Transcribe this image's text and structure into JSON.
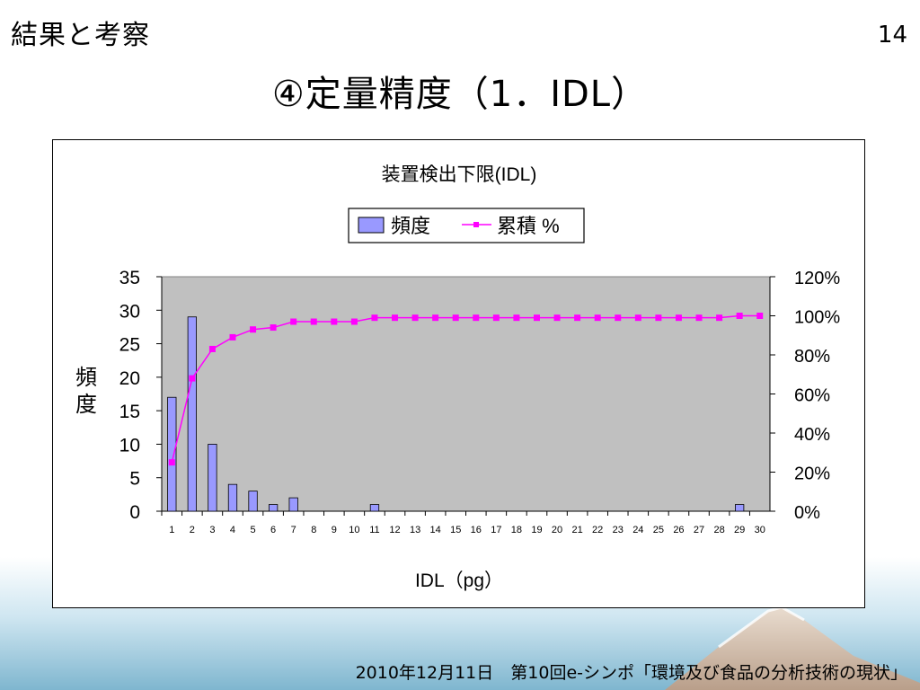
{
  "slide": {
    "section_title": "結果と考察",
    "page_number": "14",
    "title": "④定量精度（1．IDL）",
    "footer": "2010年12月11日　第10回e-シンポ「環境及び食品の分析技術の現状」"
  },
  "chart_data": {
    "type": "bar",
    "title": "装置検出下限(IDL)",
    "xlabel": "IDL（pg）",
    "ylabel": "頻度",
    "categories": [
      "1",
      "2",
      "3",
      "4",
      "5",
      "6",
      "7",
      "8",
      "9",
      "10",
      "11",
      "12",
      "13",
      "14",
      "15",
      "16",
      "17",
      "18",
      "19",
      "20",
      "21",
      "22",
      "23",
      "24",
      "25",
      "26",
      "27",
      "28",
      "29",
      "30"
    ],
    "series": [
      {
        "name": "頻度",
        "type": "bar",
        "axis": "left",
        "color": "#9999ff",
        "values": [
          17,
          29,
          10,
          4,
          3,
          1,
          2,
          0,
          0,
          0,
          1,
          0,
          0,
          0,
          0,
          0,
          0,
          0,
          0,
          0,
          0,
          0,
          0,
          0,
          0,
          0,
          0,
          0,
          1,
          0
        ]
      },
      {
        "name": "累積 %",
        "type": "line",
        "axis": "right",
        "color": "#ff00ff",
        "values": [
          0.25,
          0.68,
          0.83,
          0.89,
          0.93,
          0.94,
          0.97,
          0.97,
          0.97,
          0.97,
          0.99,
          0.99,
          0.99,
          0.99,
          0.99,
          0.99,
          0.99,
          0.99,
          0.99,
          0.99,
          0.99,
          0.99,
          0.99,
          0.99,
          0.99,
          0.99,
          0.99,
          0.99,
          1.0,
          1.0
        ]
      }
    ],
    "ylim": [
      0,
      35
    ],
    "yticks": [
      "0",
      "5",
      "10",
      "15",
      "20",
      "25",
      "30",
      "35"
    ],
    "y2lim": [
      0,
      1.2
    ],
    "y2ticks": [
      "0%",
      "20%",
      "40%",
      "60%",
      "80%",
      "100%",
      "120%"
    ],
    "legend_position": "top-center",
    "plot_background": "#c0c0c0",
    "grid": false
  }
}
